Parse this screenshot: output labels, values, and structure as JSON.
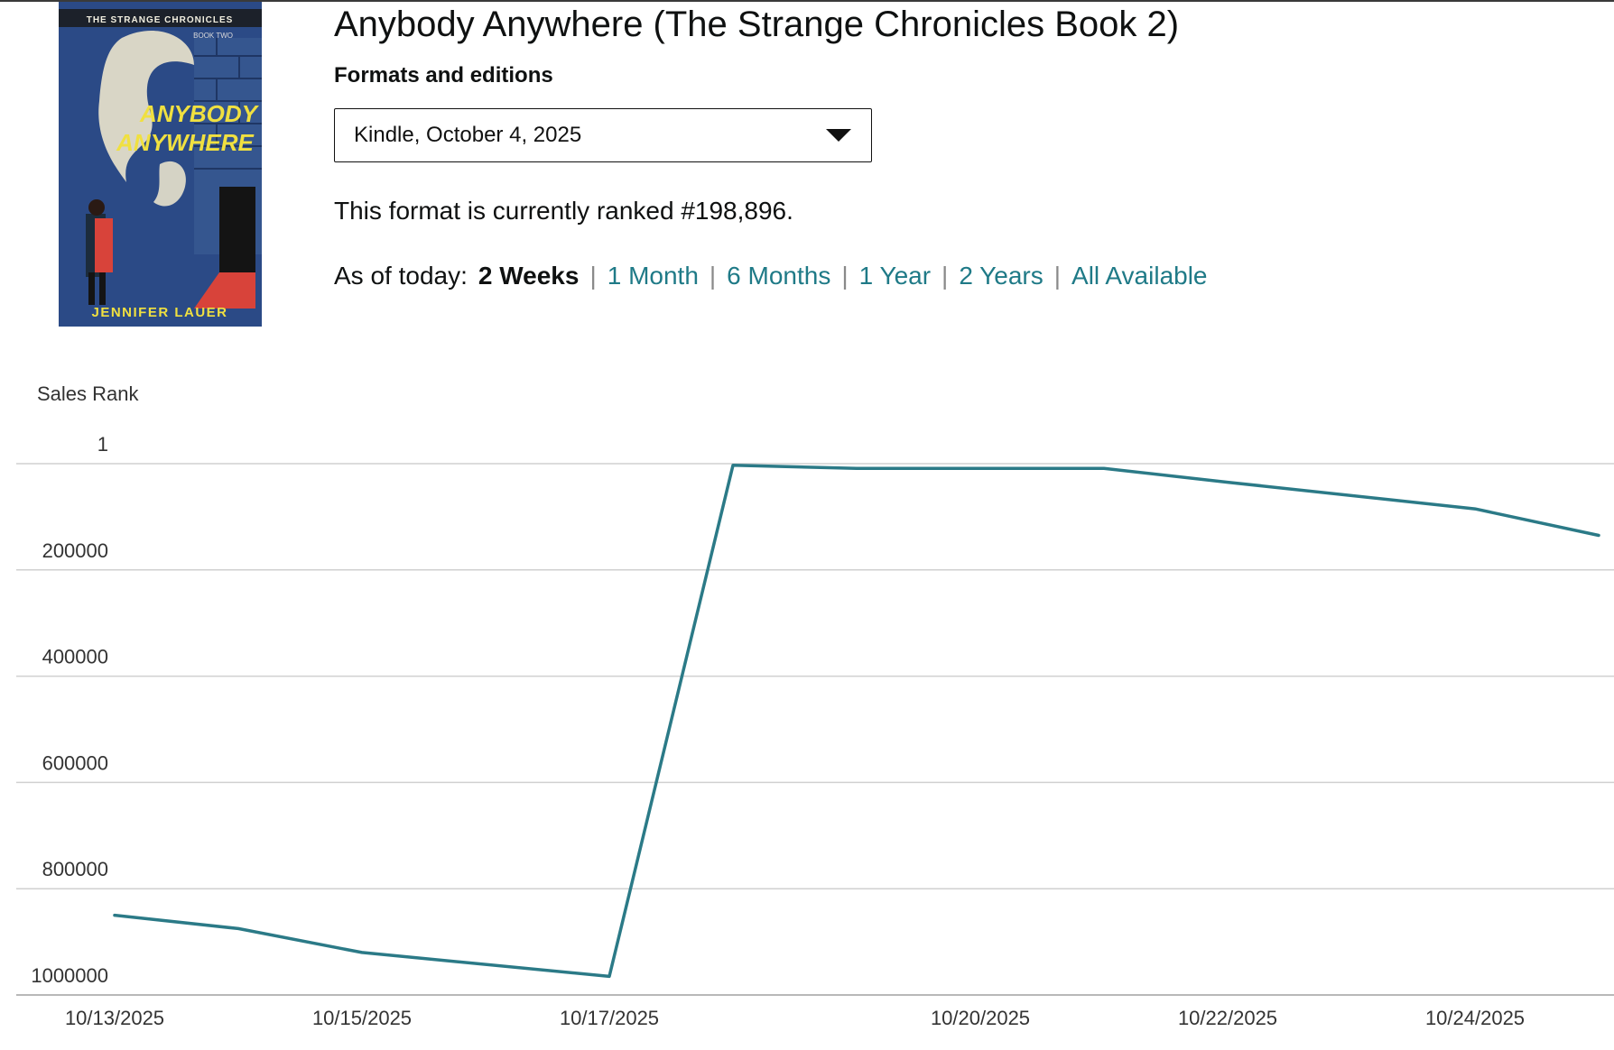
{
  "book": {
    "title": "Anybody Anywhere (The Strange Chronicles Book 2)",
    "cover": {
      "series_banner": "THE STRANGE CHRONICLES",
      "book_number": "BOOK TWO",
      "title_line1": "ANYBODY",
      "title_line2": "ANYWHERE",
      "author": "JENNIFER LAUER",
      "colors": {
        "background": "#2b4a86",
        "title": "#f0e040",
        "accent_red": "#d8433a",
        "figure": "#e8e2cc"
      }
    }
  },
  "formats": {
    "heading": "Formats and editions",
    "selected": "Kindle, October 4, 2025",
    "arrow_icon": "caret-down-icon"
  },
  "rank": {
    "text": "This format is currently ranked #198,896."
  },
  "range": {
    "prefix": "As of today:",
    "separator": "|",
    "options": [
      {
        "label": "2 Weeks",
        "active": true
      },
      {
        "label": "1 Month",
        "active": false
      },
      {
        "label": "6 Months",
        "active": false
      },
      {
        "label": "1 Year",
        "active": false
      },
      {
        "label": "2 Years",
        "active": false
      },
      {
        "label": "All Available",
        "active": false
      }
    ]
  },
  "colors": {
    "link": "#1f7a87",
    "series": "#2b7a87",
    "grid": "#d0d0d0"
  },
  "chart_data": {
    "type": "line",
    "ylabel": "Sales Rank",
    "y_inverted": true,
    "ylim": [
      1,
      1000000
    ],
    "yticks": [
      {
        "value": 1,
        "label": "1"
      },
      {
        "value": 200000,
        "label": "200000"
      },
      {
        "value": 400000,
        "label": "400000"
      },
      {
        "value": 600000,
        "label": "600000"
      },
      {
        "value": 800000,
        "label": "800000"
      },
      {
        "value": 1000000,
        "label": "1000000"
      }
    ],
    "xlim": [
      "2025-10-13",
      "2025-10-25"
    ],
    "xticks": [
      {
        "value": "2025-10-13",
        "label": "10/13/2025"
      },
      {
        "value": "2025-10-15",
        "label": "10/15/2025"
      },
      {
        "value": "2025-10-17",
        "label": "10/17/2025"
      },
      {
        "value": "2025-10-20",
        "label": "10/20/2025"
      },
      {
        "value": "2025-10-22",
        "label": "10/22/2025"
      },
      {
        "value": "2025-10-24",
        "label": "10/24/2025"
      }
    ],
    "grid": true,
    "series": [
      {
        "points": [
          {
            "x": "2025-10-13",
            "y": 850000
          },
          {
            "x": "2025-10-14",
            "y": 875000
          },
          {
            "x": "2025-10-15",
            "y": 920000
          },
          {
            "x": "2025-10-17",
            "y": 965000
          },
          {
            "x": "2025-10-18",
            "y": 3000
          },
          {
            "x": "2025-10-19",
            "y": 9000
          },
          {
            "x": "2025-10-20",
            "y": 9000
          },
          {
            "x": "2025-10-21",
            "y": 9000
          },
          {
            "x": "2025-10-22",
            "y": 35000
          },
          {
            "x": "2025-10-24",
            "y": 85000
          },
          {
            "x": "2025-10-25",
            "y": 135000
          }
        ]
      }
    ]
  }
}
